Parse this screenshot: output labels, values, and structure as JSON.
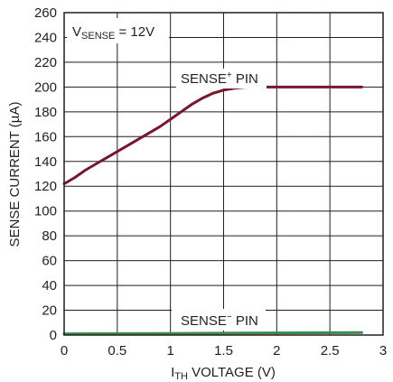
{
  "chart_data": {
    "type": "line",
    "title": "",
    "xlabel": {
      "main": "I",
      "sub": "TH",
      "rest": " VOLTAGE (V)"
    },
    "ylabel": "SENSE CURRENT (µA)",
    "xlim": [
      0,
      3
    ],
    "ylim": [
      0,
      260
    ],
    "x_ticks": [
      0,
      0.5,
      1,
      1.5,
      2,
      2.5,
      3
    ],
    "x_tick_labels": [
      "0",
      "0.5",
      "1",
      "1.5",
      "2",
      "2.5",
      "3"
    ],
    "y_ticks": [
      0,
      20,
      40,
      60,
      80,
      100,
      120,
      140,
      160,
      180,
      200,
      220,
      240,
      260
    ],
    "y_tick_labels": [
      "0",
      "20",
      "40",
      "60",
      "80",
      "100",
      "120",
      "140",
      "160",
      "180",
      "200",
      "220",
      "240",
      "260"
    ],
    "grid": true,
    "series": [
      {
        "name": "SENSE+ PIN",
        "color": "#7a1530",
        "points": [
          [
            0,
            122
          ],
          [
            0.1,
            127
          ],
          [
            0.2,
            133
          ],
          [
            0.3,
            138
          ],
          [
            0.4,
            143
          ],
          [
            0.5,
            148
          ],
          [
            0.6,
            153
          ],
          [
            0.7,
            158
          ],
          [
            0.8,
            163
          ],
          [
            0.9,
            168
          ],
          [
            1.0,
            174
          ],
          [
            1.1,
            180
          ],
          [
            1.2,
            186
          ],
          [
            1.3,
            191
          ],
          [
            1.4,
            195
          ],
          [
            1.5,
            197.5
          ],
          [
            1.6,
            199
          ],
          [
            1.7,
            199.8
          ],
          [
            1.8,
            200
          ],
          [
            2.0,
            200
          ],
          [
            2.2,
            200
          ],
          [
            2.5,
            200
          ],
          [
            2.8,
            200
          ]
        ]
      },
      {
        "name": "SENSE− PIN",
        "color": "#3a8a4a",
        "points": [
          [
            0,
            1
          ],
          [
            1.0,
            1.3
          ],
          [
            2.0,
            1.7
          ],
          [
            2.8,
            2
          ]
        ]
      }
    ],
    "annotations": {
      "vsense": {
        "main": "V",
        "sub": "SENSE",
        "rest": " = 12V"
      },
      "sense_plus": {
        "main": "SENSE",
        "sup": "+",
        "rest": " PIN"
      },
      "sense_minus": {
        "main": "SENSE",
        "sup": "−",
        "rest": " PIN"
      }
    }
  }
}
